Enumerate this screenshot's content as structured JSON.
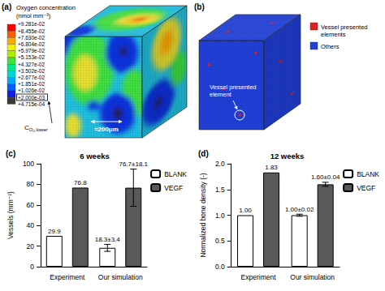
{
  "diagrams": [
    {
      "panel": "(a)",
      "legend_title": "Oxygen concentration",
      "legend_unit": "(nmol mm⁻³)",
      "levels": [
        "+9.281e-02",
        "+8.455e-02",
        "+7.630e-02",
        "+6.804e-02",
        "+5.979e-02",
        "+5.153e-02",
        "+4.327e-02",
        "+3.502e-02",
        "+2.677e-02",
        "+1.851e-02",
        "+1.026e-02",
        "+2.000e-03",
        "+4.715e-04"
      ],
      "colors": [
        "#ff0000",
        "#ff5a00",
        "#ffaa00",
        "#f0f000",
        "#aaf000",
        "#40e040",
        "#00e890",
        "#00d8d8",
        "#00a8ff",
        "#0060ff",
        "#1020e0",
        "#3a3a3a"
      ],
      "boxed_level": "+2.000e-03",
      "lower_label": {
        "main": "C",
        "sub": "O₂,lower"
      },
      "annotation": "≈200μm"
    },
    {
      "panel": "(b)",
      "legend": [
        {
          "label": "Vessel presented elements",
          "color": "#e02020"
        },
        {
          "label": "Others",
          "color": "#2040d8"
        }
      ],
      "annotation": "Vessel presented element"
    }
  ],
  "chart_data": [
    {
      "panel": "(c)",
      "type": "bar",
      "title": "6 weeks",
      "y_label": "Vessels (mm⁻²)",
      "categories": [
        "Experiment",
        "Our simulation"
      ],
      "series": [
        {
          "name": "BLANK",
          "color": "#ffffff",
          "values": [
            29.9,
            18.3
          ],
          "errors": [
            null,
            3.4
          ],
          "value_labels": [
            "29.9",
            "18.3±3.4"
          ]
        },
        {
          "name": "VEGF",
          "color": "#595959",
          "values": [
            76.8,
            76.7
          ],
          "errors": [
            null,
            18.1
          ],
          "value_labels": [
            "76.8",
            "76.7±18.1"
          ]
        }
      ],
      "ylim": [
        0,
        100
      ],
      "yticks": [
        0,
        20,
        40,
        60,
        80,
        100
      ],
      "grid": false,
      "legend": "top right",
      "data_labels": true
    },
    {
      "panel": "(d)",
      "type": "bar",
      "title": "12 weeks",
      "y_label": "Normalized bone density (-)",
      "categories": [
        "Experiment",
        "Our simulation"
      ],
      "series": [
        {
          "name": "BLANK",
          "color": "#ffffff",
          "values": [
            1.0,
            1.0
          ],
          "errors": [
            null,
            0.02
          ],
          "value_labels": [
            "1.00",
            "1.00±0.02"
          ]
        },
        {
          "name": "VEGF",
          "color": "#595959",
          "values": [
            1.83,
            1.6
          ],
          "errors": [
            null,
            0.04
          ],
          "value_labels": [
            "1.83",
            "1.60±0.04"
          ]
        }
      ],
      "ylim": [
        0,
        2.0
      ],
      "yticks": [
        {
          "value": 0,
          "label": "0.0"
        },
        {
          "value": 0.5,
          "label": "0.5"
        },
        {
          "value": 1.0,
          "label": "1.0"
        },
        {
          "value": 1.5,
          "label": "1.5"
        },
        {
          "value": 2.0,
          "label": "2.0"
        }
      ],
      "grid": false,
      "legend": "top right",
      "data_labels": true
    }
  ]
}
